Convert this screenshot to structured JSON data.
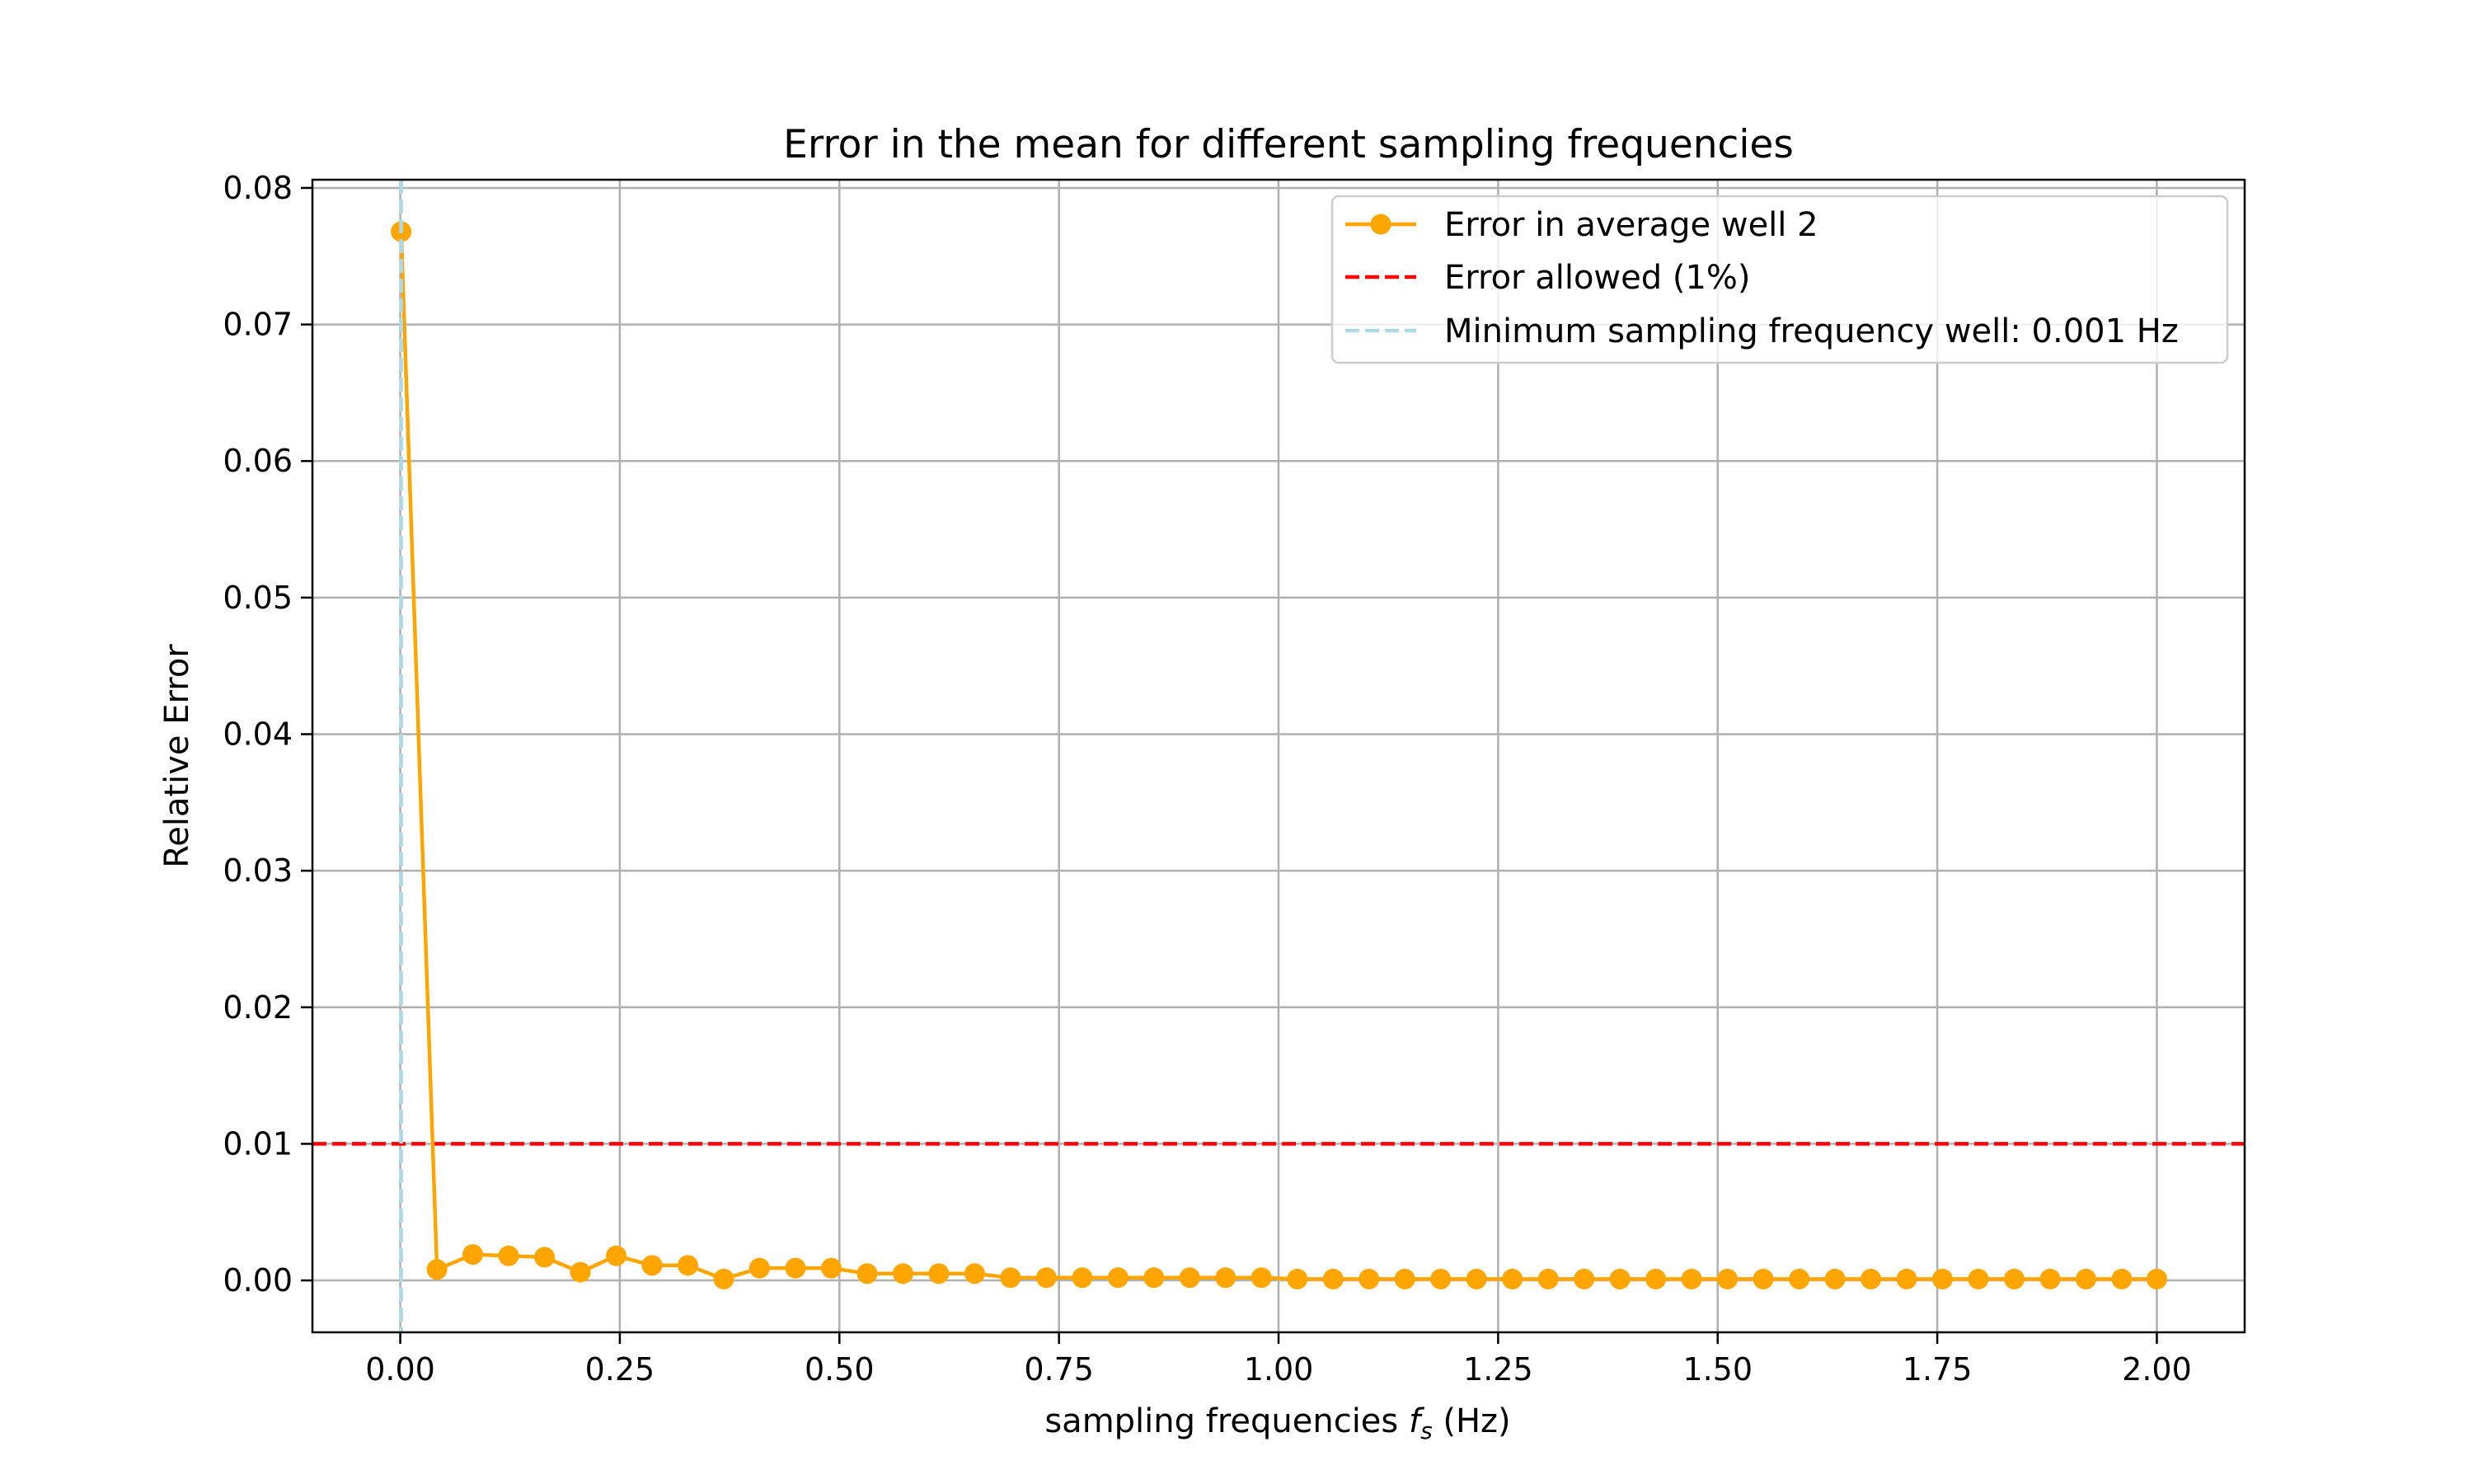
{
  "chart_data": {
    "type": "line",
    "title": "Error in the mean for different sampling frequencies",
    "xlabel": {
      "prefix": "sampling frequencies ",
      "symbol": "f",
      "subscript": "s",
      "suffix": " (Hz)"
    },
    "ylabel": "Relative Error",
    "xlim": [
      -0.1,
      2.1
    ],
    "ylim": [
      -0.0038,
      0.0806
    ],
    "xticks": [
      0.0,
      0.25,
      0.5,
      0.75,
      1.0,
      1.25,
      1.5,
      1.75,
      2.0
    ],
    "xtick_labels": [
      "0.00",
      "0.25",
      "0.50",
      "0.75",
      "1.00",
      "1.25",
      "1.50",
      "1.75",
      "2.00"
    ],
    "yticks": [
      0.0,
      0.01,
      0.02,
      0.03,
      0.04,
      0.05,
      0.06,
      0.07,
      0.08
    ],
    "ytick_labels": [
      "0.00",
      "0.01",
      "0.02",
      "0.03",
      "0.04",
      "0.05",
      "0.06",
      "0.07",
      "0.08"
    ],
    "grid": true,
    "legend_position": "top-right",
    "series": [
      {
        "name": "Error in average well 2",
        "style": "line-with-markers",
        "color": "#FFA500",
        "x": [
          0.001,
          0.0418,
          0.0826,
          0.1234,
          0.1643,
          0.2051,
          0.2459,
          0.2867,
          0.3275,
          0.3683,
          0.4091,
          0.45,
          0.4908,
          0.5316,
          0.5724,
          0.6132,
          0.654,
          0.6948,
          0.7357,
          0.7765,
          0.8173,
          0.8581,
          0.8989,
          0.9397,
          0.9805,
          1.0214,
          1.0622,
          1.103,
          1.1438,
          1.1846,
          1.2254,
          1.2662,
          1.3071,
          1.3479,
          1.3887,
          1.4295,
          1.4703,
          1.5111,
          1.5519,
          1.5928,
          1.6336,
          1.6744,
          1.7152,
          1.756,
          1.7968,
          1.8376,
          1.8785,
          1.9193,
          1.9601,
          2.0
        ],
        "y": [
          0.0768,
          0.0008,
          0.0019,
          0.0018,
          0.0017,
          0.0006,
          0.0018,
          0.0011,
          0.0011,
          0.0001,
          0.0009,
          0.0009,
          0.0009,
          0.0005,
          0.0005,
          0.0005,
          0.0005,
          0.0002,
          0.0002,
          0.0002,
          0.0002,
          0.0002,
          0.0002,
          0.0002,
          0.0002,
          0.0001,
          0.0001,
          0.0001,
          0.0001,
          0.0001,
          0.0001,
          0.0001,
          0.0001,
          0.0001,
          0.0001,
          0.0001,
          0.0001,
          0.0001,
          0.0001,
          0.0001,
          0.0001,
          0.0001,
          0.0001,
          0.0001,
          0.0001,
          0.0001,
          0.0001,
          0.0001,
          0.0001,
          0.0001
        ]
      },
      {
        "name": "Error allowed (1%)",
        "style": "horizontal-dashed",
        "color": "#FF0000",
        "y": 0.01
      },
      {
        "name": "Minimum sampling frequency well: 0.001 Hz",
        "style": "vertical-dashed",
        "color": "#ADD8E6",
        "x": 0.001
      }
    ]
  }
}
